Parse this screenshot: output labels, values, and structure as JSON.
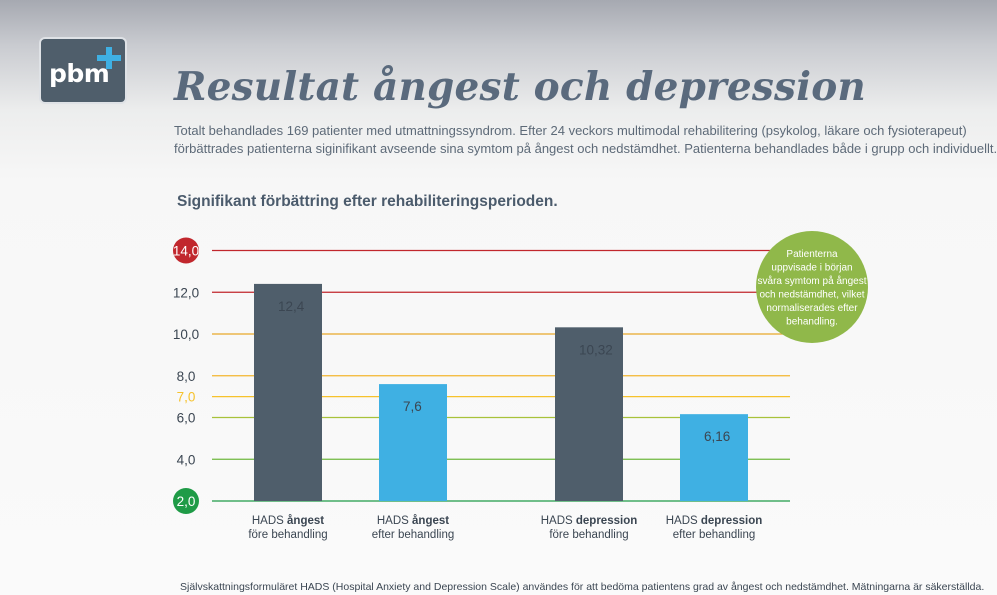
{
  "header": {
    "logo_text": "pbm",
    "title": "Resultat ångest och depression",
    "intro_lines": [
      "Totalt behandlades 169 patienter med utmattningssyndrom. Efter 24 veckors multimodal rehabilitering (psykolog, läkare och fysioterapeut)",
      "förbättrades patienterna siginifikant avseende sina symtom på ångest och nedstämdhet. Patienterna behandlades både i grupp och individuellt."
    ],
    "subtitle": "Signifikant förbättring efter rehabiliteringsperioden."
  },
  "chart_data": {
    "type": "bar",
    "title": "",
    "xlabel": "",
    "ylabel": "",
    "categories": [
      {
        "prefix": "HADS ",
        "bold": "ångest",
        "line2": "före behandling"
      },
      {
        "prefix": "HADS ",
        "bold": "ångest",
        "line2": "efter behandling"
      },
      {
        "prefix": "HADS ",
        "bold": "depression",
        "line2": "före behandling"
      },
      {
        "prefix": "HADS ",
        "bold": "depression",
        "line2": "efter behandling"
      }
    ],
    "values": [
      12.4,
      7.6,
      10.32,
      6.16
    ],
    "value_labels": [
      "12,4",
      "7,6",
      "10,32",
      "6,16"
    ],
    "bar_colors": [
      "#4f5e6b",
      "#3fb0e3",
      "#4f5e6b",
      "#3fb0e3"
    ],
    "ylim": [
      2,
      14
    ],
    "ticks": [
      {
        "value": 14,
        "label": "14,0",
        "style": "badge",
        "color": "#c1272d"
      },
      {
        "value": 12,
        "label": "12,0",
        "style": "plain",
        "color": "#c1272d"
      },
      {
        "value": 10,
        "label": "10,0",
        "style": "plain",
        "color": "#e7a72a"
      },
      {
        "value": 8,
        "label": "8,0",
        "style": "plain",
        "color": "#f3b62f"
      },
      {
        "value": 7,
        "label": "7,0",
        "style": "highlight",
        "color": "#f6c22c"
      },
      {
        "value": 6,
        "label": "6,0",
        "style": "plain",
        "color": "#a8c23a"
      },
      {
        "value": 4,
        "label": "4,0",
        "style": "plain",
        "color": "#6fb83f"
      },
      {
        "value": 2,
        "label": "2,0",
        "style": "badge",
        "color": "#1f9b47"
      }
    ],
    "grid": true,
    "legend": "none",
    "annotation": {
      "color": "#90b84a",
      "lines": [
        "Patienterna",
        "uppvisade i början",
        "svåra symtom på ångest",
        "och nedstämdhet, vilket",
        "normaliserades efter",
        "behandling."
      ]
    }
  },
  "footnote": "Självskattningsformuläret HADS (Hospital Anxiety and Depression Scale) användes för att bedöma patientens grad av ångest och nedstämdhet. Mätningarna är säkerställda."
}
